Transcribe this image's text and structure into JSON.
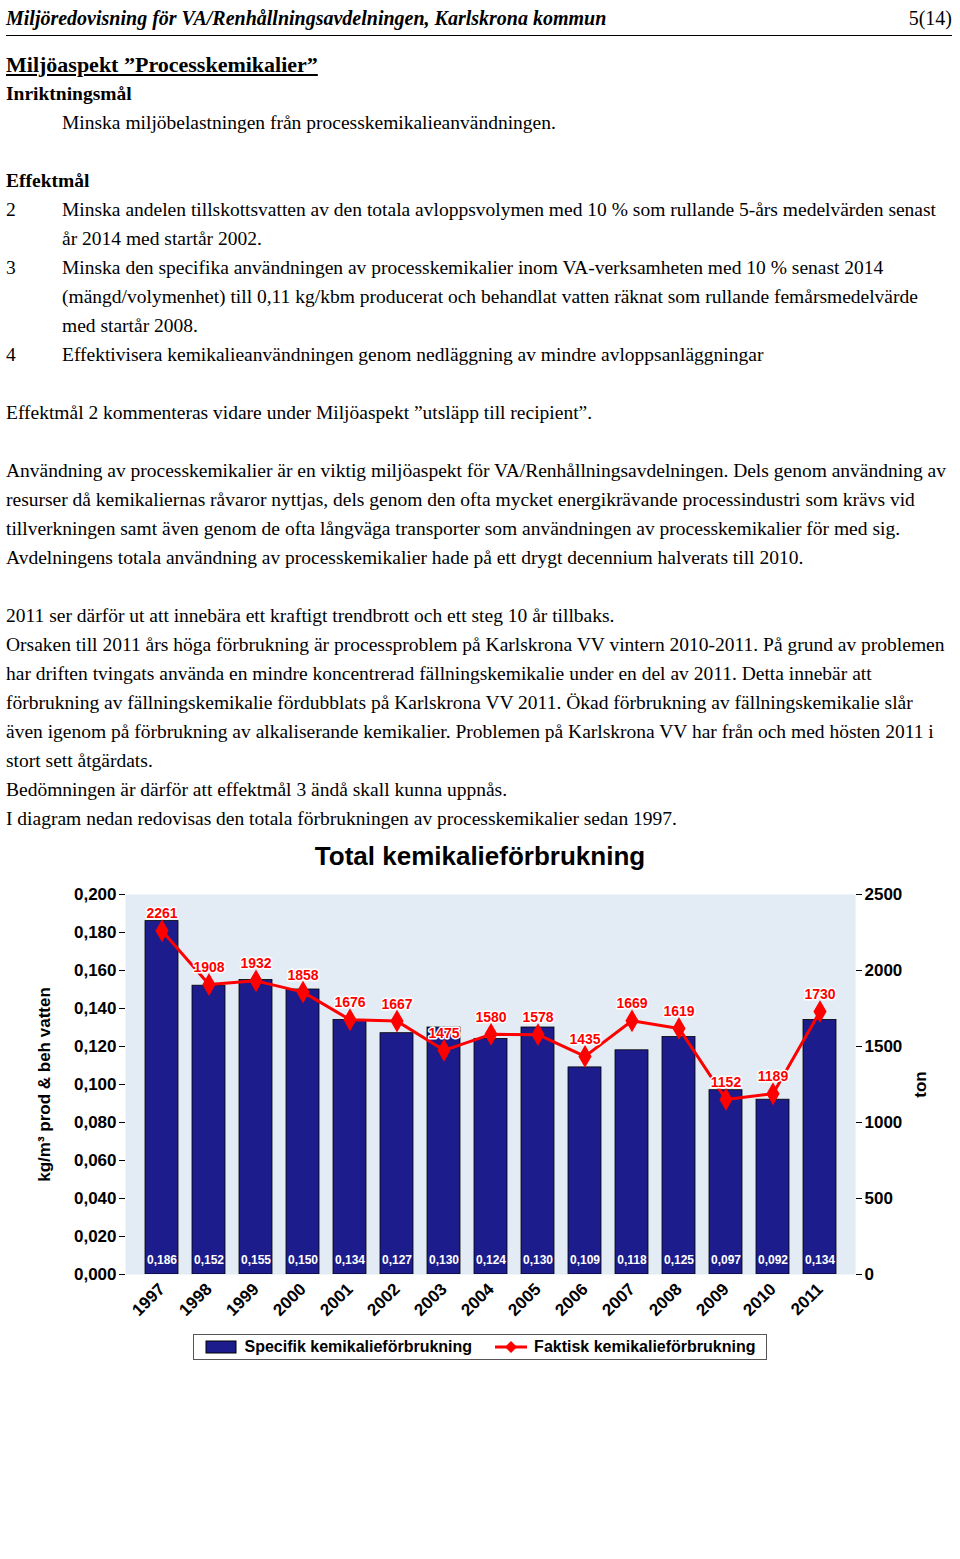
{
  "header": {
    "title": "Miljöredovisning för VA/Renhållningsavdelningen, Karlskrona kommun",
    "page": "5(14)"
  },
  "heading": "Miljöaspekt ”Processkemikalier”",
  "inriktningsmal": {
    "title": "Inriktningsmål",
    "text": "Minska miljöbelastningen från processkemikalieanvändningen."
  },
  "effektmal": {
    "title": "Effektmål",
    "items": [
      {
        "number": 2,
        "text": "Minska andelen tillskottsvatten av den totala avloppsvolymen med 10 % som rullande 5-års medelvärden senast år 2014 med startår 2002."
      },
      {
        "number": 3,
        "text": "Minska den specifika användningen av processkemikalier inom VA-verksamheten med 10 % senast 2014 (mängd/volymenhet) till 0,11 kg/kbm producerat och behandlat vatten räknat som rullande femårsmedelvärde med startår 2008."
      },
      {
        "number": 4,
        "text": "Effektivisera kemikalieanvändningen genom nedläggning av mindre avloppsanläggningar"
      }
    ]
  },
  "paragraphs": [
    [
      "Effektmål 2 kommenteras vidare under Miljöaspekt ”utsläpp till recipient”."
    ],
    [
      "Användning av processkemikalier är en viktig miljöaspekt för VA/Renhållningsavdelningen. Dels genom användning av resurser då kemikaliernas råvaror nyttjas, dels genom den ofta mycket energikrävande processindustri som krävs vid tillverkningen samt även genom de ofta långväga transporter som användningen av processkemikalier för med sig.",
      "Avdelningens totala användning av processkemikalier hade på ett drygt decennium halverats till 2010."
    ],
    [
      "2011 ser därför ut att innebära ett kraftigt trendbrott och ett steg 10 år tillbaks.",
      "Orsaken till 2011 års höga förbrukning är processproblem på Karlskrona VV vintern 2010-2011. På grund av problemen har driften tvingats använda en mindre koncentrerad fällningskemikalie under en del av 2011. Detta innebär att förbrukning av fällningskemikalie fördubblats på Karlskrona VV 2011. Ökad förbrukning av fällningskemikalie slår även igenom på förbrukning av alkaliserande kemikalier. Problemen på Karlskrona VV har från och med hösten 2011 i stort sett åtgärdats.",
      "Bedömningen är därför att effektmål 3 ändå skall kunna uppnås.",
      "I diagram nedan redovisas den totala förbrukningen av processkemikalier sedan 1997."
    ]
  ],
  "chart_data": {
    "type": "bar",
    "title": "Total kemikalieförbrukning",
    "categories": [
      "1997",
      "1998",
      "1999",
      "2000",
      "2001",
      "2002",
      "2003",
      "2004",
      "2005",
      "2006",
      "2007",
      "2008",
      "2009",
      "2010",
      "2011"
    ],
    "series": [
      {
        "name": "Specifik kemikalieförbrukning",
        "type": "bar",
        "color": "#1c1c8c",
        "values": [
          0.186,
          0.152,
          0.155,
          0.15,
          0.134,
          0.127,
          0.13,
          0.124,
          0.13,
          0.109,
          0.118,
          0.125,
          0.097,
          0.092,
          0.134
        ],
        "value_labels": [
          "0,186",
          "0,152",
          "0,155",
          "0,150",
          "0,134",
          "0,127",
          "0,130",
          "0,124",
          "0,130",
          "0,109",
          "0,118",
          "0,125",
          "0,097",
          "0,092",
          "0,134"
        ]
      },
      {
        "name": "Faktisk kemikalieförbrukning",
        "type": "line",
        "axis": "y2",
        "color": "#ff0000",
        "marker": "diamond",
        "line_style": "solid",
        "values": [
          2261,
          1908,
          1932,
          1858,
          1676,
          1667,
          1475,
          1580,
          1578,
          1435,
          1669,
          1619,
          1152,
          1189,
          1730
        ]
      }
    ],
    "ylabel": "kg/m³ prod & beh vatten",
    "y2label": "ton",
    "ylim": [
      0,
      0.2
    ],
    "yticks": [
      {
        "value": 0,
        "label": "0,000"
      },
      {
        "value": 0.02,
        "label": "0,020"
      },
      {
        "value": 0.04,
        "label": "0,040"
      },
      {
        "value": 0.06,
        "label": "0,060"
      },
      {
        "value": 0.08,
        "label": "0,080"
      },
      {
        "value": 0.1,
        "label": "0,100"
      },
      {
        "value": 0.12,
        "label": "0,120"
      },
      {
        "value": 0.14,
        "label": "0,140"
      },
      {
        "value": 0.16,
        "label": "0,160"
      },
      {
        "value": 0.18,
        "label": "0,180"
      },
      {
        "value": 0.2,
        "label": "0,200"
      }
    ],
    "y2lim": [
      0,
      2500
    ],
    "y2ticks": [
      0,
      500,
      1000,
      1500,
      2000,
      2500
    ],
    "grid": false,
    "data_labels": true,
    "legend": "bottom"
  }
}
